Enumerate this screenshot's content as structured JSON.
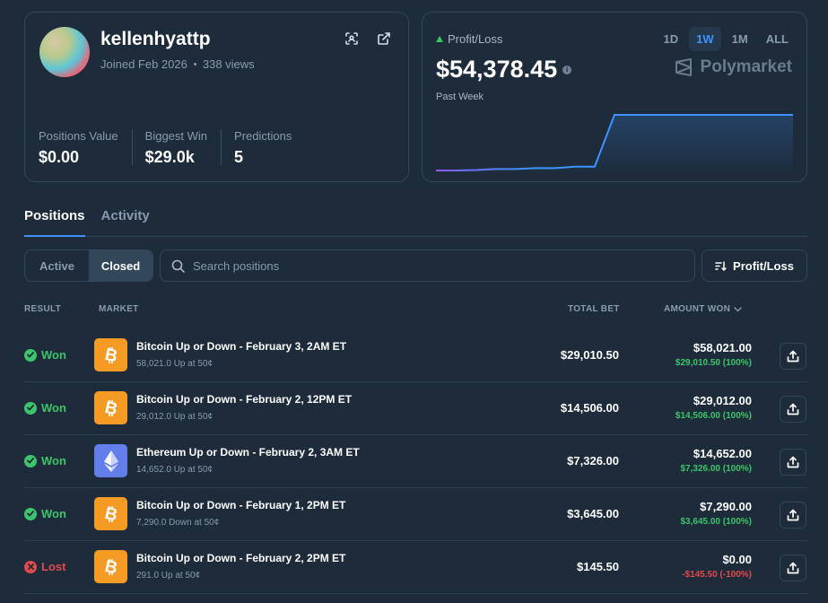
{
  "profile": {
    "username": "kellenhyattp",
    "joined": "Joined Feb 2026",
    "views": "338 views",
    "stats": [
      {
        "label": "Positions Value",
        "value": "$0.00"
      },
      {
        "label": "Biggest Win",
        "value": "$29.0k"
      },
      {
        "label": "Predictions",
        "value": "5"
      }
    ]
  },
  "pnl": {
    "label": "Profit/Loss",
    "value": "$54,378.45",
    "period": "Past Week",
    "brand": "Polymarket",
    "timeframes": [
      "1D",
      "1W",
      "1M",
      "ALL"
    ],
    "active_timeframe": "1W",
    "series": [
      0,
      0,
      0.4,
      1.4,
      1.4,
      2.3,
      2.3,
      3.8,
      3.8,
      54.4,
      54.4,
      54.4,
      54.4,
      54.4,
      54.4,
      54.4,
      54.4,
      54.4,
      54.4
    ],
    "colors": {
      "line": "#3d93ff",
      "line_start": "#8b5cf6",
      "positive": "#3cc56a"
    }
  },
  "tabs": [
    "Positions",
    "Activity"
  ],
  "filters": {
    "segments": [
      "Active",
      "Closed"
    ],
    "active_segment": "Closed",
    "search_placeholder": "Search positions",
    "sort_label": "Profit/Loss"
  },
  "table": {
    "headers": {
      "result": "RESULT",
      "market": "MARKET",
      "total_bet": "TOTAL BET",
      "amount_won": "AMOUNT WON"
    },
    "rows": [
      {
        "result": "Won",
        "outcome": "won",
        "coin": "btc",
        "title": "Bitcoin Up or Down - February 3, 2AM ET",
        "subtitle": "58,021.0 Up at 50¢",
        "total_bet": "$29,010.50",
        "amount_won": "$58,021.00",
        "pnl": "$29,010.50 (100%)"
      },
      {
        "result": "Won",
        "outcome": "won",
        "coin": "btc",
        "title": "Bitcoin Up or Down - February 2, 12PM ET",
        "subtitle": "29,012.0 Up at 50¢",
        "total_bet": "$14,506.00",
        "amount_won": "$29,012.00",
        "pnl": "$14,506.00 (100%)"
      },
      {
        "result": "Won",
        "outcome": "won",
        "coin": "eth",
        "title": "Ethereum Up or Down - February 2, 3AM ET",
        "subtitle": "14,652.0 Up at 50¢",
        "total_bet": "$7,326.00",
        "amount_won": "$14,652.00",
        "pnl": "$7,326.00 (100%)"
      },
      {
        "result": "Won",
        "outcome": "won",
        "coin": "btc",
        "title": "Bitcoin Up or Down - February 1, 2PM ET",
        "subtitle": "7,290.0 Down at 50¢",
        "total_bet": "$3,645.00",
        "amount_won": "$7,290.00",
        "pnl": "$3,645.00 (100%)"
      },
      {
        "result": "Lost",
        "outcome": "lost",
        "coin": "btc",
        "title": "Bitcoin Up or Down - February 2, 2PM ET",
        "subtitle": "291.0 Up at 50¢",
        "total_bet": "$145.50",
        "amount_won": "$0.00",
        "pnl": "-$145.50 (-100%)"
      }
    ]
  }
}
